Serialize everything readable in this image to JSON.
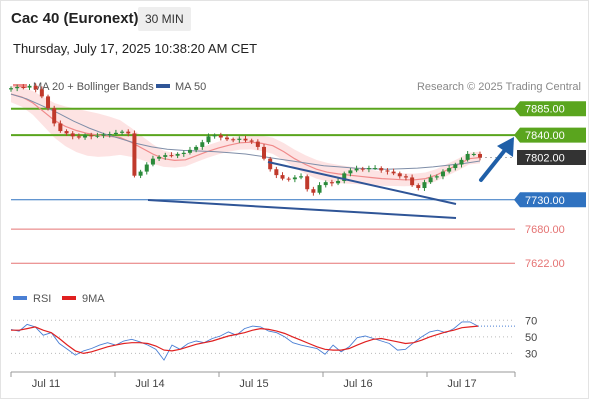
{
  "header": {
    "title": "Cac 40 (Euronext)",
    "interval": "30 MIN",
    "datetime": "Thursday, July 17, 2025 10:38:20 AM CET"
  },
  "legend": {
    "ma20_label": "MA 20 + Bollinger Bands",
    "ma50_label": "MA 50",
    "credit": "Research © 2025 Trading Central",
    "rsi_label": "RSI",
    "rsi_ma_label": "9MA"
  },
  "colors": {
    "ma20": "#f08a8a",
    "band_fill": "#fde0e0",
    "ma50": "#7f8ea8",
    "up_candle": "#2a8a3a",
    "down_candle": "#c0392b",
    "resistance": "#5aa51e",
    "support_blue": "#2f72c0",
    "support_red": "#e57373",
    "trendline": "#2f5597",
    "arrow": "#1f5fa8",
    "last_price": "#333333",
    "rsi": "#4a7fd4",
    "rsi_ma": "#e02020"
  },
  "chart_data": [
    {
      "type": "candlestick",
      "title": "Cac 40 (Euronext)",
      "interval": "30 MIN",
      "ylim": [
        7590,
        7905
      ],
      "x_tick_labels": [
        "Jul 11",
        "Jul 14",
        "Jul 15",
        "Jul 16",
        "Jul 17"
      ],
      "last_price": 7802.0,
      "levels": [
        {
          "value": 7885.0,
          "label": "7885.00",
          "kind": "resistance"
        },
        {
          "value": 7840.0,
          "label": "7840.00",
          "kind": "resistance"
        },
        {
          "value": 7802.0,
          "label": "7802.00",
          "kind": "last"
        },
        {
          "value": 7730.0,
          "label": "7730.00",
          "kind": "support-major"
        },
        {
          "value": 7680.0,
          "label": "7680.00",
          "kind": "support"
        },
        {
          "value": 7622.0,
          "label": "7622.00",
          "kind": "support"
        }
      ],
      "close_series": [
        7920,
        7922,
        7921,
        7924,
        7918,
        7906,
        7886,
        7860,
        7847,
        7843,
        7838,
        7836,
        7840,
        7838,
        7839,
        7841,
        7842,
        7844,
        7846,
        7843,
        7771,
        7778,
        7790,
        7800,
        7803,
        7806,
        7805,
        7808,
        7810,
        7815,
        7820,
        7828,
        7838,
        7840,
        7836,
        7833,
        7832,
        7834,
        7831,
        7829,
        7820,
        7800,
        7782,
        7772,
        7766,
        7765,
        7768,
        7770,
        7748,
        7742,
        7755,
        7760,
        7758,
        7762,
        7775,
        7780,
        7783,
        7782,
        7784,
        7784,
        7780,
        7778,
        7775,
        7770,
        7768,
        7755,
        7750,
        7760,
        7768,
        7770,
        7778,
        7784,
        7790,
        7798,
        7808,
        7808,
        7802
      ],
      "ma20_series": [
        7910,
        7905,
        7895,
        7880,
        7865,
        7855,
        7848,
        7843,
        7840,
        7838,
        7836,
        7828,
        7818,
        7808,
        7800,
        7797,
        7798,
        7805,
        7812,
        7818,
        7823,
        7827,
        7828,
        7826,
        7822,
        7812,
        7800,
        7790,
        7782,
        7777,
        7774,
        7772,
        7770,
        7768,
        7766,
        7765,
        7764,
        7764,
        7766,
        7772,
        7781,
        7790,
        7800,
        7802
      ],
      "ma50_series": [
        7910,
        7902,
        7890,
        7878,
        7864,
        7852,
        7842,
        7834,
        7826,
        7820,
        7816,
        7814,
        7813,
        7812,
        7810,
        7808,
        7804,
        7800,
        7796,
        7792,
        7788,
        7786,
        7784,
        7783,
        7782,
        7783,
        7784,
        7786,
        7789,
        7792,
        7796
      ]
    },
    {
      "type": "line",
      "title": "RSI",
      "ylim": [
        10,
        80
      ],
      "y_ticks": [
        70,
        50,
        30
      ],
      "series": [
        {
          "name": "RSI",
          "values": [
            59,
            57,
            65,
            62,
            52,
            55,
            42,
            35,
            28,
            33,
            36,
            40,
            43,
            40,
            45,
            47,
            44,
            40,
            35,
            22,
            40,
            35,
            42,
            45,
            43,
            48,
            51,
            56,
            52,
            60,
            63,
            62,
            57,
            55,
            50,
            43,
            40,
            38,
            36,
            29,
            40,
            32,
            38,
            49,
            51,
            48,
            45,
            42,
            34,
            35,
            43,
            50,
            56,
            58,
            55,
            60,
            68,
            68,
            63
          ]
        },
        {
          "name": "9MA",
          "values": [
            58,
            58,
            60,
            62,
            58,
            55,
            48,
            40,
            33,
            30,
            32,
            35,
            38,
            40,
            42,
            43,
            43,
            42,
            39,
            34,
            33,
            35,
            38,
            41,
            43,
            45,
            48,
            51,
            53,
            55,
            58,
            60,
            59,
            57,
            54,
            50,
            46,
            42,
            38,
            35,
            34,
            34,
            36,
            40,
            44,
            47,
            48,
            46,
            44,
            42,
            43,
            46,
            50,
            53,
            56,
            58,
            61,
            62,
            63
          ]
        }
      ]
    }
  ]
}
